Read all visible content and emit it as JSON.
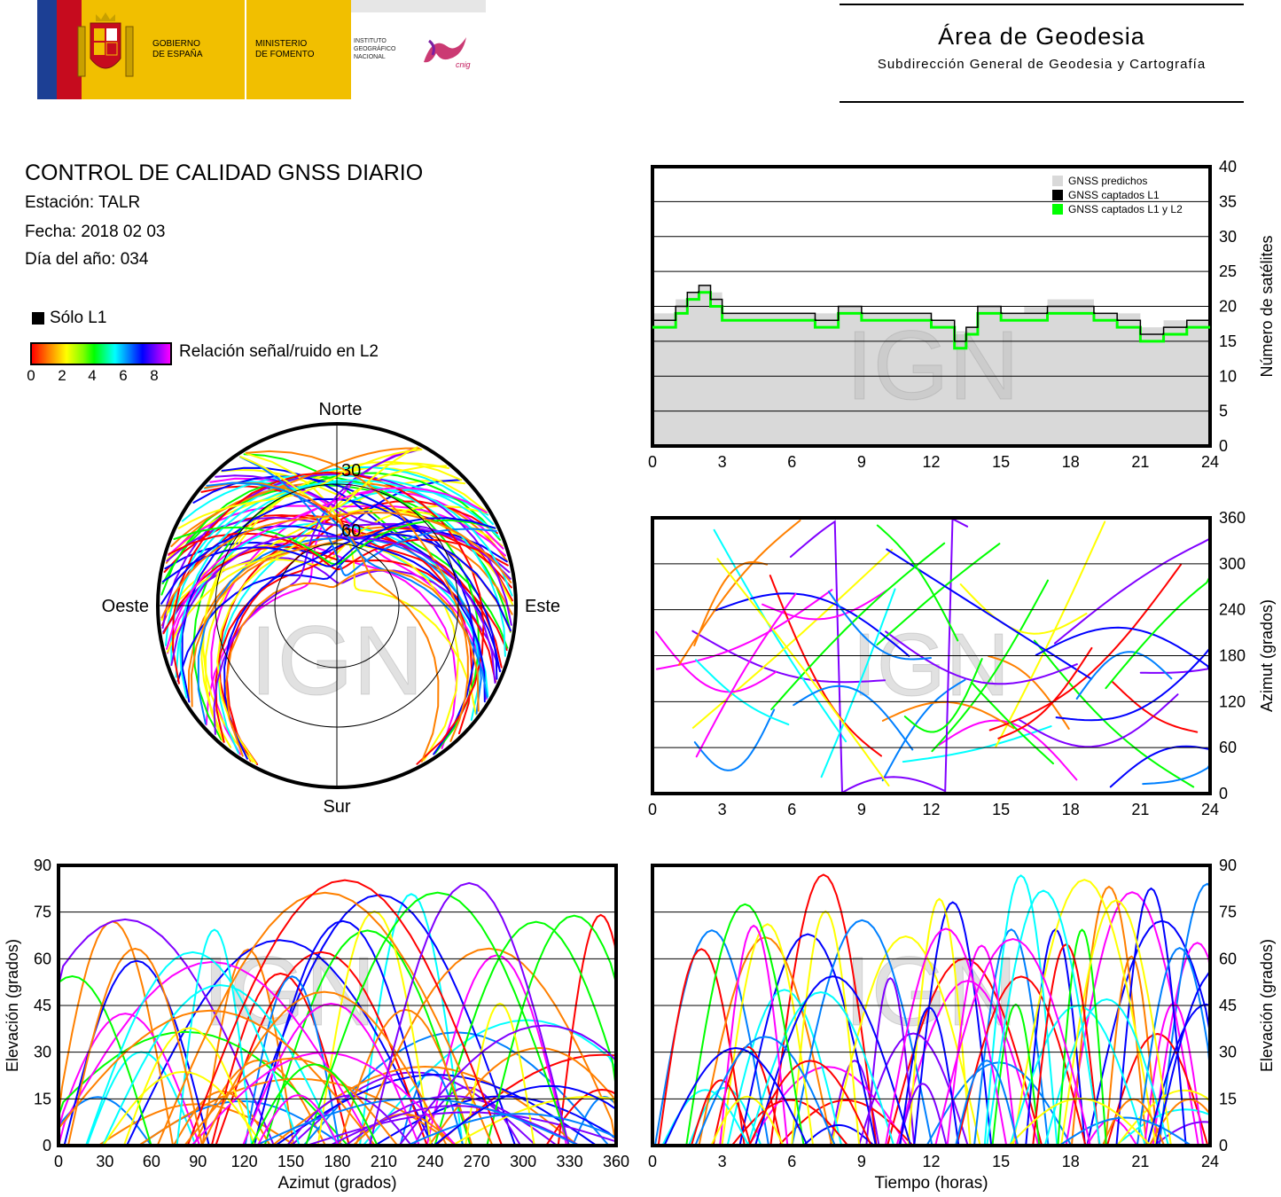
{
  "header": {
    "gobierno": "GOBIERNO\nDE ESPAÑA",
    "ministerio": "MINISTERIO\nDE FOMENTO",
    "instituto": "INSTITUTO\nGEOGRÁFICO\nNACIONAL",
    "cnig": "cnig",
    "area_title": "Área de Geodesia",
    "area_subtitle": "Subdirección General de Geodesia y Cartografía"
  },
  "report": {
    "title": "CONTROL DE CALIDAD GNSS DIARIO",
    "station": "Estación: TALR",
    "date": "Fecha: 2018 02 03",
    "doy": "Día del año: 034"
  },
  "legend": {
    "only_l1": "Sólo L1",
    "snr_label": "Relación señal/ruido en L2",
    "snr_ticks": [
      "0",
      "2",
      "4",
      "6",
      "8"
    ]
  },
  "watermark": "IGN",
  "colors": {
    "predicted": "#d9d9d9",
    "l1": "#000000",
    "l1l2": "#00ff00",
    "snr_scale": [
      "#ff0000",
      "#ff8000",
      "#ffff00",
      "#00ff00",
      "#00ffff",
      "#0080ff",
      "#0000ff",
      "#8000ff",
      "#ff00ff"
    ]
  },
  "chart_data": [
    {
      "id": "sat_count",
      "type": "line",
      "ylabel": "Número de satélites",
      "xlim": [
        0,
        24
      ],
      "ylim": [
        0,
        40
      ],
      "xticks": [
        0,
        3,
        6,
        9,
        12,
        15,
        18,
        21,
        24
      ],
      "yticks": [
        0,
        5,
        10,
        15,
        20,
        25,
        30,
        35,
        40
      ],
      "grid": true,
      "legend_position": "top-right",
      "x": [
        0,
        0.5,
        1,
        1.5,
        2,
        2.5,
        3,
        4,
        5,
        6,
        7,
        8,
        9,
        10,
        11,
        12,
        12.5,
        13,
        13.5,
        14,
        15,
        16,
        17,
        18,
        19,
        20,
        21,
        22,
        23,
        24
      ],
      "series": [
        {
          "name": "GNSS predichos",
          "values": [
            19,
            19,
            21,
            22,
            23,
            22,
            19,
            19,
            19,
            19,
            19,
            20,
            19,
            19,
            19,
            18,
            18,
            16,
            17,
            20,
            19,
            20,
            21,
            21,
            19,
            19,
            17,
            18,
            18,
            19
          ]
        },
        {
          "name": "GNSS captados L1",
          "values": [
            18,
            18,
            20,
            22,
            23,
            21,
            19,
            19,
            19,
            19,
            18,
            20,
            19,
            19,
            19,
            18,
            18,
            15,
            17,
            20,
            19,
            19,
            20,
            20,
            19,
            18,
            16,
            17,
            18,
            18
          ]
        },
        {
          "name": "GNSS captados L1 y L2",
          "values": [
            17,
            17,
            19,
            21,
            22,
            20,
            18,
            18,
            18,
            18,
            17,
            19,
            18,
            18,
            18,
            17,
            17,
            14,
            16,
            19,
            18,
            18,
            19,
            19,
            18,
            17,
            15,
            16,
            17,
            17
          ]
        }
      ]
    },
    {
      "id": "azimuth_time",
      "type": "scatter",
      "ylabel": "Azimut (grados)",
      "xlim": [
        0,
        24
      ],
      "ylim": [
        0,
        360
      ],
      "xticks": [
        0,
        3,
        6,
        9,
        12,
        15,
        18,
        21,
        24
      ],
      "yticks": [
        0,
        60,
        120,
        180,
        240,
        300,
        360
      ],
      "grid": true
    },
    {
      "id": "skyplot",
      "type": "scatter",
      "cardinals": {
        "n": "Norte",
        "s": "Sur",
        "e": "Este",
        "w": "Oeste"
      },
      "rings": [
        "30",
        "60"
      ]
    },
    {
      "id": "elev_azimuth",
      "type": "scatter",
      "xlabel": "Azimut (grados)",
      "ylabel": "Elevación (grados)",
      "xlim": [
        0,
        360
      ],
      "ylim": [
        0,
        90
      ],
      "xticks": [
        0,
        30,
        60,
        90,
        120,
        150,
        180,
        210,
        240,
        270,
        300,
        330,
        360
      ],
      "yticks": [
        0,
        15,
        30,
        45,
        60,
        75,
        90
      ],
      "grid": true
    },
    {
      "id": "elev_time",
      "type": "scatter",
      "xlabel": "Tiempo (horas)",
      "ylabel": "Elevación (grados)",
      "xlim": [
        0,
        24
      ],
      "ylim": [
        0,
        90
      ],
      "xticks": [
        0,
        3,
        6,
        9,
        12,
        15,
        18,
        21,
        24
      ],
      "yticks": [
        0,
        15,
        30,
        45,
        60,
        75,
        90
      ],
      "grid": true
    }
  ]
}
